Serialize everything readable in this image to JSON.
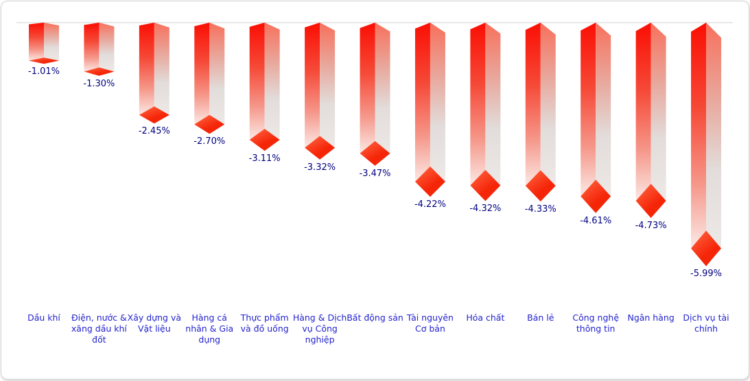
{
  "chart_data": {
    "type": "bar",
    "title": "",
    "xlabel": "",
    "ylabel": "",
    "ylim": [
      -6.5,
      0
    ],
    "grid": false,
    "legend_position": "none",
    "bar_style": "3d-glossy-column-hanging-below-baseline",
    "value_format": "percent",
    "categories": [
      "Dầu khí",
      "Điện, nước & xăng dầu khí đốt",
      "Xây dựng và Vật liệu",
      "Hàng cá nhân & Gia dụng",
      "Thực phẩm và đồ uống",
      "Hàng & Dịch vụ Công nghiệp",
      "Bất động sản",
      "Tài nguyên Cơ bản",
      "Hóa chất",
      "Bán lẻ",
      "Công nghệ thông tin",
      "Ngân hàng",
      "Dịch vụ tài chính"
    ],
    "category_lines": [
      [
        "Dầu khí"
      ],
      [
        "Điện, nước &",
        "xăng dầu khí",
        "đốt"
      ],
      [
        "Xây dựng và",
        "Vật liệu"
      ],
      [
        "Hàng cá",
        "nhân & Gia",
        "dụng"
      ],
      [
        "Thực phẩm",
        "và đồ uống"
      ],
      [
        "Hàng & Dịch",
        "vụ Công",
        "nghiệp"
      ],
      [
        "Bất động sản"
      ],
      [
        "Tài nguyên",
        "Cơ bản"
      ],
      [
        "Hóa chất"
      ],
      [
        "Bán lẻ"
      ],
      [
        "Công nghệ",
        "thông tin"
      ],
      [
        "Ngân hàng"
      ],
      [
        "Dịch vụ tài",
        "chính"
      ]
    ],
    "values": [
      -1.01,
      -1.3,
      -2.45,
      -2.7,
      -3.11,
      -3.32,
      -3.47,
      -4.22,
      -4.32,
      -4.33,
      -4.61,
      -4.73,
      -5.99
    ],
    "data_labels": [
      "-1.01%",
      "-1.30%",
      "-2.45%",
      "-2.70%",
      "-3.11%",
      "-3.32%",
      "-3.47%",
      "-4.22%",
      "-4.32%",
      "-4.33%",
      "-4.61%",
      "-4.73%",
      "-5.99%"
    ],
    "colors": {
      "background": "#ffffff",
      "card_border": "#d2d2d2",
      "baseline": "#dadada",
      "bar_front_top": "#fa0e03",
      "bar_front_mid": "#f64937",
      "bar_front_low": "#f5988b",
      "bar_front_bottom": "#fbe9e5",
      "bar_side_top": "#f7705c",
      "bar_side_mid": "#e8a99e",
      "bar_side_low": "#e2dcda",
      "bar_side_bottom": "#ede9e7",
      "diamond_light": "#ff6a45",
      "diamond_dark": "#f52508",
      "value_label": "#000080",
      "category_label": "#2323ce"
    }
  }
}
